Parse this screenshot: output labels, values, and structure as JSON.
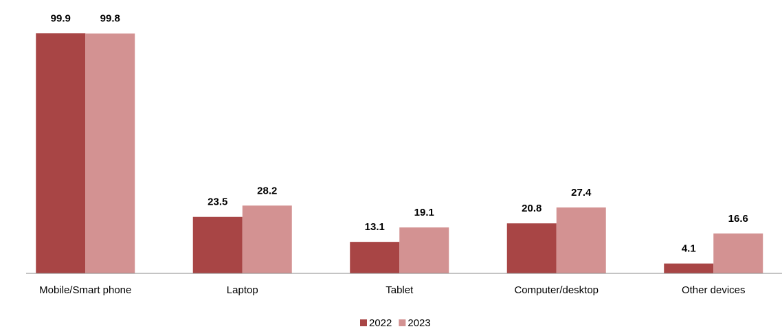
{
  "chart_data": {
    "type": "bar",
    "categories": [
      "Mobile/Smart phone",
      "Laptop",
      "Tablet",
      "Computer/desktop",
      "Other devices"
    ],
    "series": [
      {
        "name": "2022",
        "color": "#a84545",
        "values": [
          99.9,
          23.5,
          13.1,
          20.8,
          4.1
        ]
      },
      {
        "name": "2023",
        "color": "#d39292",
        "values": [
          99.8,
          28.2,
          19.1,
          27.4,
          16.6
        ]
      }
    ],
    "ylim": [
      0,
      100
    ],
    "legend": "bottom"
  }
}
